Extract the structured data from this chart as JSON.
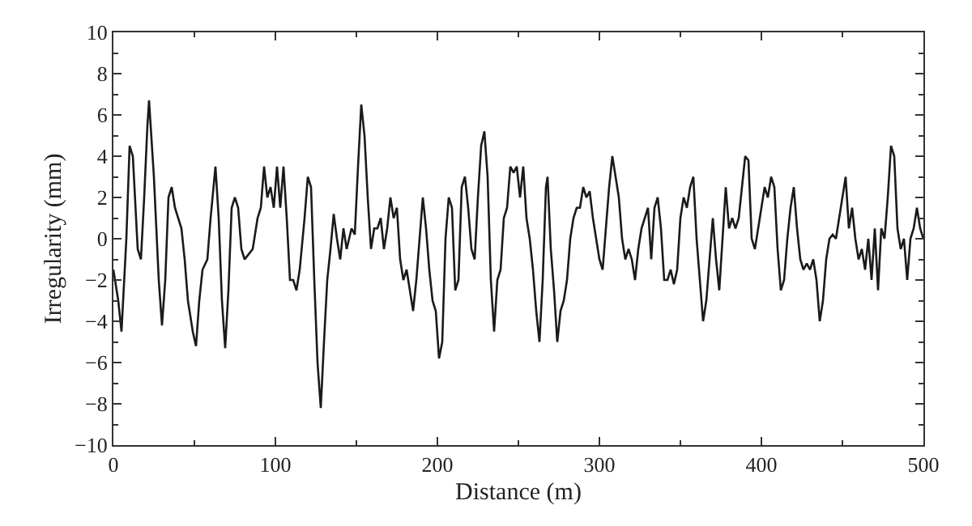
{
  "chart_data": {
    "type": "line",
    "xlabel": "Distance (m)",
    "ylabel": "Irregularity (mm)",
    "xlim": [
      0,
      500
    ],
    "xticks": [
      0,
      100,
      200,
      300,
      400,
      500
    ],
    "ylim": [
      -10,
      10
    ],
    "yticks": [
      -10,
      -8,
      -6,
      -4,
      -2,
      0,
      2,
      4,
      6,
      8,
      10
    ],
    "marker": "none",
    "line_style": "solid",
    "series": [
      {
        "color": "#1a1a1a",
        "x": [
          0,
          3,
          5,
          8,
          10,
          12,
          15,
          17,
          19,
          21,
          22,
          25,
          28,
          30,
          32,
          34,
          36,
          38,
          40,
          42,
          44,
          46,
          49,
          51,
          53,
          55,
          58,
          60,
          63,
          65,
          67,
          69,
          71,
          73,
          75,
          77,
          79,
          81,
          83,
          86,
          89,
          91,
          93,
          95,
          97,
          99,
          101,
          103,
          105,
          107,
          109,
          111,
          113,
          115,
          118,
          120,
          122,
          124,
          126,
          128,
          130,
          132,
          134,
          136,
          138,
          140,
          142,
          144,
          147,
          149,
          151,
          153,
          155,
          157,
          159,
          161,
          163,
          165,
          167,
          169,
          171,
          173,
          175,
          177,
          179,
          181,
          183,
          185,
          187,
          189,
          191,
          193,
          195,
          197,
          199,
          201,
          203,
          205,
          207,
          209,
          211,
          213,
          215,
          217,
          219,
          221,
          223,
          225,
          227,
          229,
          231,
          233,
          235,
          237,
          239,
          241,
          243,
          245,
          247,
          249,
          251,
          253,
          255,
          257,
          259,
          261,
          263,
          265,
          267,
          268,
          270,
          272,
          274,
          276,
          278,
          280,
          282,
          284,
          286,
          288,
          290,
          292,
          294,
          296,
          298,
          300,
          302,
          304,
          306,
          308,
          310,
          312,
          314,
          316,
          318,
          320,
          322,
          324,
          326,
          328,
          330,
          332,
          334,
          336,
          338,
          340,
          342,
          344,
          346,
          348,
          350,
          352,
          354,
          356,
          358,
          360,
          362,
          364,
          366,
          368,
          370,
          372,
          374,
          376,
          378,
          380,
          382,
          384,
          386,
          388,
          390,
          392,
          394,
          396,
          398,
          400,
          402,
          404,
          406,
          408,
          410,
          412,
          414,
          416,
          418,
          420,
          422,
          424,
          426,
          428,
          430,
          432,
          434,
          436,
          438,
          440,
          442,
          444,
          446,
          448,
          450,
          452,
          454,
          456,
          458,
          460,
          462,
          464,
          466,
          468,
          470,
          472,
          474,
          476,
          478,
          480,
          482,
          484,
          486,
          488,
          490,
          492,
          494,
          496,
          498,
          500
        ],
        "values": [
          -1.5,
          -3,
          -4.5,
          0,
          4.5,
          4,
          -0.5,
          -1,
          2,
          5.5,
          6.7,
          3,
          -2,
          -4.2,
          -2,
          2,
          2.5,
          1.5,
          1,
          0.5,
          -1,
          -3,
          -4.5,
          -5.2,
          -3,
          -1.5,
          -1,
          1,
          3.5,
          1,
          -3,
          -5.3,
          -2.5,
          1.5,
          2,
          1.5,
          -0.5,
          -1,
          -0.8,
          -0.5,
          1,
          1.5,
          3.5,
          2,
          2.5,
          1.5,
          3.5,
          1.5,
          3.5,
          1,
          -2,
          -2,
          -2.5,
          -1.5,
          1,
          3,
          2.5,
          -2,
          -6,
          -8.2,
          -5,
          -2,
          -0.5,
          1.2,
          0,
          -1,
          0.5,
          -0.5,
          0.5,
          0.2,
          3.5,
          6.5,
          5,
          2,
          -0.5,
          0.5,
          0.5,
          1,
          -0.5,
          0.5,
          2,
          1,
          1.5,
          -1,
          -2,
          -1.5,
          -2.5,
          -3.5,
          -2,
          0,
          2,
          0.5,
          -1.5,
          -3,
          -3.5,
          -5.8,
          -5,
          0,
          2,
          1.5,
          -2.5,
          -2,
          2.5,
          3,
          1.5,
          -0.5,
          -1,
          2,
          4.5,
          5.2,
          3,
          -2,
          -4.5,
          -2,
          -1.5,
          1,
          1.5,
          3.5,
          3.2,
          3.5,
          2,
          3.5,
          1,
          0,
          -1.5,
          -3.5,
          -5,
          -2,
          2.5,
          3,
          -0.5,
          -2.5,
          -5,
          -3.5,
          -3,
          -2,
          0,
          1,
          1.5,
          1.5,
          2.5,
          2,
          2.3,
          1,
          0,
          -1,
          -1.5,
          0.5,
          2.5,
          4,
          3,
          2,
          0,
          -1,
          -0.5,
          -1,
          -2,
          -0.5,
          0.5,
          1,
          1.5,
          -1,
          1.5,
          2,
          0.5,
          -2,
          -2,
          -1.5,
          -2.2,
          -1.5,
          1,
          2,
          1.5,
          2.5,
          3,
          0,
          -2,
          -4,
          -3,
          -1,
          1,
          -1,
          -2.5,
          0,
          2.5,
          0.5,
          1,
          0.5,
          1,
          2.5,
          4,
          3.8,
          0,
          -0.5,
          0.5,
          1.5,
          2.5,
          2,
          3,
          2.5,
          -0.5,
          -2.5,
          -2,
          0,
          1.5,
          2.5,
          0.5,
          -1,
          -1.5,
          -1.2,
          -1.5,
          -1,
          -2,
          -4,
          -3,
          -1,
          0,
          0.2,
          0,
          1,
          2,
          3,
          0.5,
          1.5,
          0,
          -1,
          -0.5,
          -1.5,
          0,
          -2,
          0.5,
          -2.5,
          0.5,
          0,
          2,
          4.5,
          4,
          0.5,
          -0.5,
          0,
          -2,
          0,
          0.5,
          1.5,
          0.5,
          0
        ]
      }
    ]
  }
}
